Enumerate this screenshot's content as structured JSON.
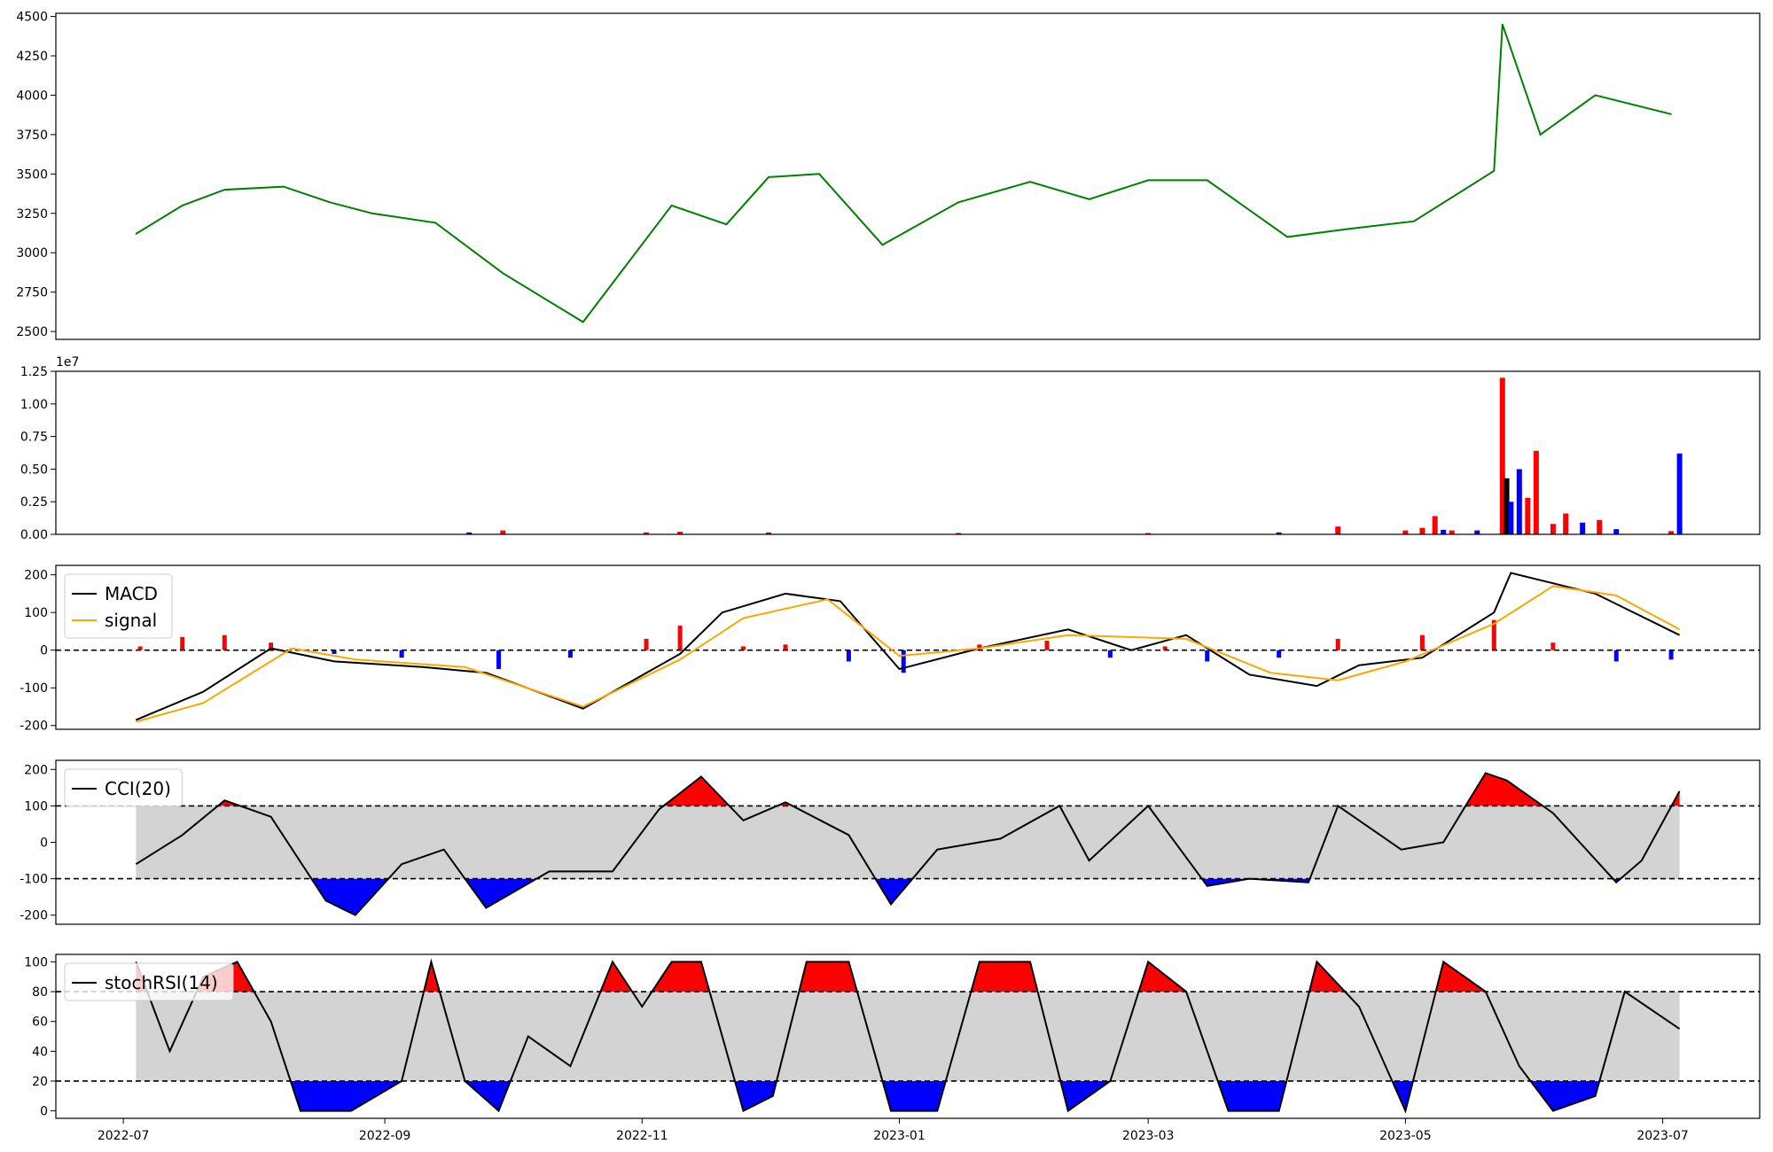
{
  "chart_data": [
    {
      "type": "line",
      "panel": "price",
      "ylim": [
        2450,
        4520
      ],
      "y_ticks": [
        "2500",
        "2750",
        "3000",
        "3250",
        "3500",
        "3750",
        "4000",
        "4250",
        "4500"
      ],
      "y_tick_values": [
        2500,
        2750,
        3000,
        3250,
        3500,
        3750,
        4000,
        4250,
        4500
      ],
      "line_color": "#008000",
      "x": [
        "2022-07-04",
        "2022-07-15",
        "2022-07-25",
        "2022-08-08",
        "2022-08-19",
        "2022-08-29",
        "2022-09-13",
        "2022-09-29",
        "2022-10-18",
        "2022-11-08",
        "2022-11-21",
        "2022-12-01",
        "2022-12-13",
        "2022-12-28",
        "2023-01-15",
        "2023-02-01",
        "2023-02-15",
        "2023-03-01",
        "2023-03-15",
        "2023-04-03",
        "2023-04-17",
        "2023-05-03",
        "2023-05-22",
        "2023-05-24",
        "2023-06-02",
        "2023-06-15",
        "2023-07-03"
      ],
      "values": [
        3120,
        3300,
        3400,
        3420,
        3320,
        3250,
        3190,
        2870,
        2560,
        3300,
        3180,
        3480,
        3500,
        3050,
        3320,
        3450,
        3340,
        3460,
        3460,
        3100,
        3150,
        3200,
        3520,
        4450,
        3750,
        4000,
        3880
      ]
    },
    {
      "type": "bar",
      "panel": "volume",
      "ylim": [
        0,
        12500000
      ],
      "scale_label": "1e7",
      "y_ticks": [
        "0.00",
        "0.25",
        "0.50",
        "0.75",
        "1.00",
        "1.25"
      ],
      "y_tick_values": [
        0,
        0.25,
        0.5,
        0.75,
        1.0,
        1.25
      ],
      "colors": {
        "up": "#ff0000",
        "down": "#0000ff",
        "flat": "#000000"
      },
      "x": [
        "2022-09-21",
        "2022-09-29",
        "2022-11-02",
        "2022-11-10",
        "2022-12-01",
        "2023-01-15",
        "2023-03-01",
        "2023-04-01",
        "2023-04-15",
        "2023-05-01",
        "2023-05-05",
        "2023-05-08",
        "2023-05-10",
        "2023-05-12",
        "2023-05-18",
        "2023-05-24",
        "2023-05-25",
        "2023-05-26",
        "2023-05-28",
        "2023-05-30",
        "2023-06-01",
        "2023-06-05",
        "2023-06-08",
        "2023-06-12",
        "2023-06-16",
        "2023-06-20",
        "2023-07-03",
        "2023-07-05"
      ],
      "values": [
        150000,
        300000,
        150000,
        200000,
        150000,
        100000,
        100000,
        150000,
        600000,
        300000,
        500000,
        1400000,
        350000,
        300000,
        300000,
        12000000,
        4300000,
        2500000,
        5000000,
        2800000,
        6400000,
        800000,
        1600000,
        900000,
        1100000,
        400000,
        250000,
        6200000
      ],
      "direction": [
        "down",
        "up",
        "up",
        "up",
        "up",
        "up",
        "up",
        "down",
        "up",
        "up",
        "up",
        "up",
        "down",
        "up",
        "down",
        "up",
        "flat",
        "down",
        "down",
        "up",
        "up",
        "up",
        "up",
        "down",
        "up",
        "down",
        "up",
        "down"
      ]
    },
    {
      "type": "line",
      "panel": "macd",
      "ylim": [
        -210,
        225
      ],
      "y_ticks": [
        "-200",
        "-100",
        "0",
        "100",
        "200"
      ],
      "y_tick_values": [
        -200,
        -100,
        0,
        100,
        200
      ],
      "reference_lines": [
        0
      ],
      "legend_location": "upper-left",
      "series": [
        {
          "name": "MACD",
          "color": "#000000",
          "x": [
            "2022-07-04",
            "2022-07-20",
            "2022-08-05",
            "2022-08-20",
            "2022-09-10",
            "2022-09-25",
            "2022-10-18",
            "2022-11-10",
            "2022-11-20",
            "2022-12-05",
            "2022-12-18",
            "2023-01-01",
            "2023-01-20",
            "2023-02-10",
            "2023-02-25",
            "2023-03-10",
            "2023-03-25",
            "2023-04-10",
            "2023-04-20",
            "2023-05-05",
            "2023-05-22",
            "2023-05-26",
            "2023-06-15",
            "2023-07-05"
          ],
          "values": [
            -185,
            -110,
            5,
            -30,
            -45,
            -60,
            -155,
            -10,
            100,
            150,
            130,
            -50,
            5,
            55,
            0,
            40,
            -65,
            -95,
            -40,
            -20,
            100,
            205,
            150,
            40
          ]
        },
        {
          "name": "signal",
          "color": "#ffa500",
          "x": [
            "2022-07-04",
            "2022-07-20",
            "2022-08-10",
            "2022-08-25",
            "2022-09-20",
            "2022-10-18",
            "2022-11-10",
            "2022-11-25",
            "2022-12-15",
            "2023-01-01",
            "2023-01-20",
            "2023-02-10",
            "2023-03-10",
            "2023-03-30",
            "2023-04-15",
            "2023-05-01",
            "2023-05-22",
            "2023-06-05",
            "2023-06-20",
            "2023-07-05"
          ],
          "values": [
            -190,
            -140,
            5,
            -25,
            -45,
            -150,
            -25,
            85,
            135,
            -15,
            5,
            40,
            30,
            -60,
            -80,
            -30,
            70,
            170,
            145,
            55
          ]
        }
      ],
      "histogram": {
        "colors": {
          "positive": "#ff0000",
          "negative": "#0000ff"
        },
        "x": [
          "2022-07-05",
          "2022-07-15",
          "2022-07-25",
          "2022-08-05",
          "2022-08-20",
          "2022-09-05",
          "2022-09-28",
          "2022-10-15",
          "2022-11-02",
          "2022-11-10",
          "2022-11-25",
          "2022-12-05",
          "2022-12-20",
          "2023-01-02",
          "2023-01-20",
          "2023-02-05",
          "2023-02-20",
          "2023-03-05",
          "2023-03-15",
          "2023-04-01",
          "2023-04-15",
          "2023-05-05",
          "2023-05-22",
          "2023-06-05",
          "2023-06-20",
          "2023-07-03"
        ],
        "values": [
          10,
          35,
          40,
          20,
          -10,
          -20,
          -50,
          -20,
          30,
          65,
          10,
          15,
          -30,
          -60,
          15,
          25,
          -20,
          10,
          -30,
          -20,
          30,
          40,
          80,
          20,
          -30,
          -25
        ]
      }
    },
    {
      "type": "area",
      "panel": "cci",
      "ylim": [
        -225,
        225
      ],
      "y_ticks": [
        "-200",
        "-100",
        "0",
        "100",
        "200"
      ],
      "y_tick_values": [
        -200,
        -100,
        0,
        100,
        200
      ],
      "reference_lines": [
        100,
        -100
      ],
      "legend_location": "upper-left",
      "band": {
        "low": -100,
        "high": 100,
        "color": "#d3d3d3"
      },
      "fill_colors": {
        "above": "#ff0000",
        "below": "#0000ff"
      },
      "series": [
        {
          "name": "CCI(20)",
          "color": "#000000",
          "x": [
            "2022-07-04",
            "2022-07-15",
            "2022-07-25",
            "2022-08-05",
            "2022-08-18",
            "2022-08-25",
            "2022-09-05",
            "2022-09-15",
            "2022-09-25",
            "2022-10-10",
            "2022-10-25",
            "2022-11-05",
            "2022-11-15",
            "2022-11-25",
            "2022-12-05",
            "2022-12-20",
            "2022-12-30",
            "2023-01-10",
            "2023-01-25",
            "2023-02-08",
            "2023-02-15",
            "2023-03-01",
            "2023-03-15",
            "2023-03-25",
            "2023-04-08",
            "2023-04-15",
            "2023-04-30",
            "2023-05-10",
            "2023-05-20",
            "2023-05-25",
            "2023-06-05",
            "2023-06-20",
            "2023-06-26",
            "2023-07-05"
          ],
          "values": [
            -60,
            20,
            115,
            70,
            -160,
            -200,
            -60,
            -20,
            -180,
            -80,
            -80,
            90,
            180,
            60,
            110,
            20,
            -170,
            -20,
            10,
            100,
            -50,
            100,
            -120,
            -100,
            -110,
            100,
            -20,
            0,
            190,
            170,
            80,
            -110,
            -50,
            140
          ]
        }
      ]
    },
    {
      "type": "area",
      "panel": "stochrsi",
      "ylim": [
        -5,
        105
      ],
      "y_ticks": [
        "0",
        "20",
        "40",
        "60",
        "80",
        "100"
      ],
      "y_tick_values": [
        0,
        20,
        40,
        60,
        80,
        100
      ],
      "reference_lines": [
        80,
        20
      ],
      "legend_location": "upper-left",
      "band": {
        "low": 20,
        "high": 80,
        "color": "#d3d3d3"
      },
      "fill_colors": {
        "above": "#ff0000",
        "below": "#0000ff"
      },
      "series": [
        {
          "name": "stochRSI(14)",
          "color": "#000000",
          "x": [
            "2022-07-04",
            "2022-07-12",
            "2022-07-20",
            "2022-07-28",
            "2022-08-05",
            "2022-08-12",
            "2022-08-24",
            "2022-09-05",
            "2022-09-12",
            "2022-09-20",
            "2022-09-28",
            "2022-10-05",
            "2022-10-15",
            "2022-10-25",
            "2022-11-01",
            "2022-11-08",
            "2022-11-15",
            "2022-11-25",
            "2022-12-02",
            "2022-12-10",
            "2022-12-20",
            "2022-12-30",
            "2023-01-10",
            "2023-01-20",
            "2023-02-01",
            "2023-02-10",
            "2023-02-20",
            "2023-03-01",
            "2023-03-10",
            "2023-03-20",
            "2023-04-01",
            "2023-04-10",
            "2023-04-20",
            "2023-05-01",
            "2023-05-10",
            "2023-05-20",
            "2023-05-28",
            "2023-06-05",
            "2023-06-15",
            "2023-06-22",
            "2023-07-05"
          ],
          "values": [
            100,
            40,
            90,
            100,
            60,
            0,
            0,
            20,
            100,
            20,
            0,
            50,
            30,
            100,
            70,
            100,
            100,
            0,
            10,
            100,
            100,
            0,
            0,
            100,
            100,
            0,
            20,
            100,
            80,
            0,
            0,
            100,
            70,
            0,
            100,
            80,
            30,
            0,
            10,
            80,
            55
          ]
        }
      ]
    }
  ],
  "x_axis": {
    "domain": [
      "2022-06-15",
      "2023-07-24"
    ],
    "ticks": [
      "2022-07",
      "2022-09",
      "2022-11",
      "2023-01",
      "2023-03",
      "2023-05",
      "2023-07"
    ],
    "tick_dates": [
      "2022-07-01",
      "2022-09-01",
      "2022-11-01",
      "2023-01-01",
      "2023-03-01",
      "2023-05-01",
      "2023-07-01"
    ]
  }
}
